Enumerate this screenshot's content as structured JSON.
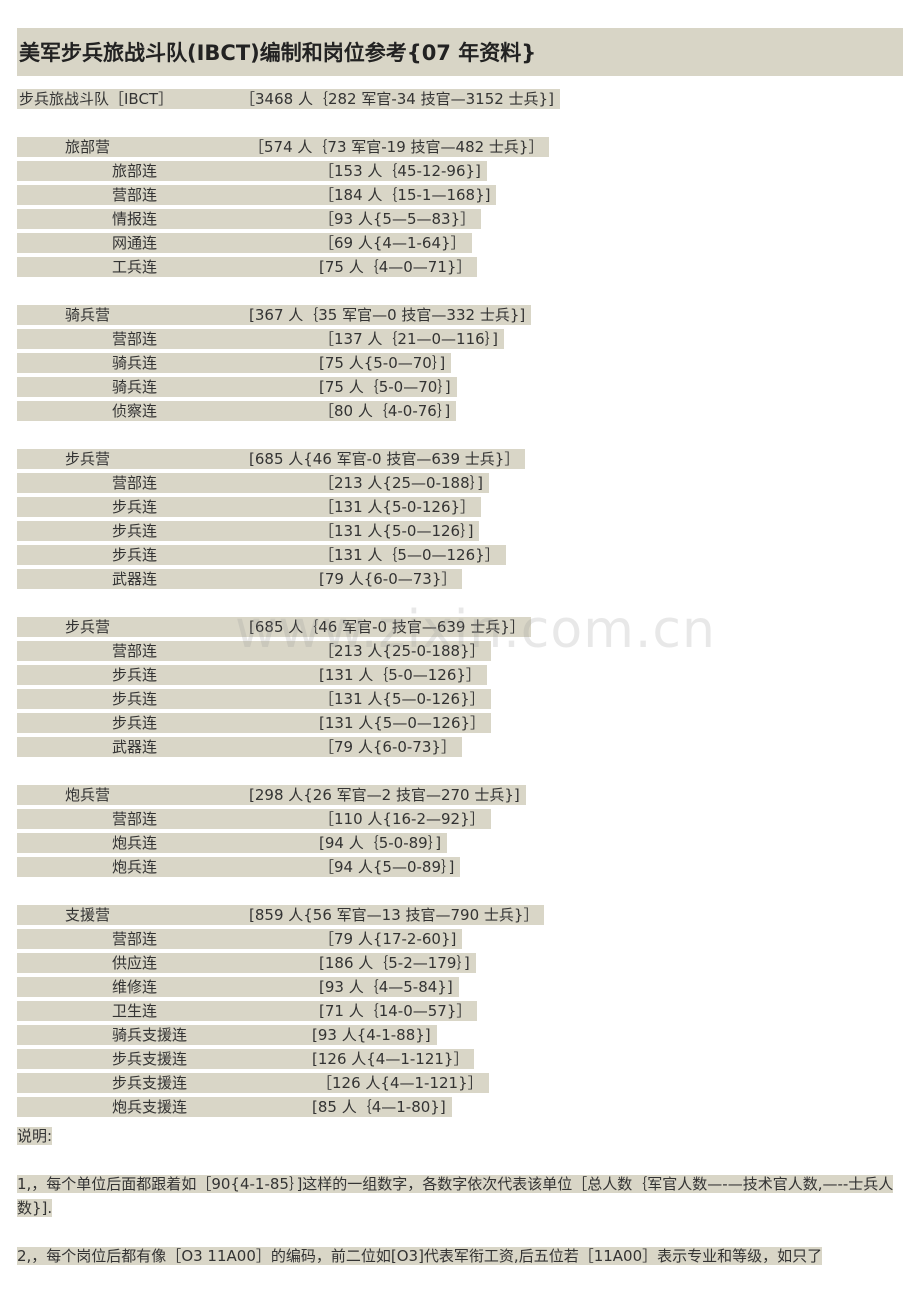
{
  "title": "美军步兵旅战斗队(IBCT)编制和岗位参考{07 年资料}",
  "rows": [
    {
      "level": 0,
      "name": "步兵旅战斗队［IBCT］",
      "value": "［3468 人｛282 军官-34 技官—3152 士兵}]"
    },
    null,
    {
      "level": 1,
      "name": "旅部营",
      "value": "［574 人｛73 军官-19 技官—482 士兵}］"
    },
    {
      "level": 2,
      "name": "旅部连",
      "value": "［153 人｛45-12-96}]"
    },
    {
      "level": 2,
      "name": "营部连",
      "value": "［184 人｛15-1—168}]"
    },
    {
      "level": 2,
      "name": "情报连",
      "value": "［93 人{5—5—83}］"
    },
    {
      "level": 2,
      "name": "网通连",
      "value": "［69 人{4—1-64}］"
    },
    {
      "level": 2,
      "name": "工兵连",
      "value": "[75 人｛4—0—71}］"
    },
    null,
    {
      "level": 1,
      "name": "骑兵营",
      "value": "[367 人｛35 军官—0 技官—332 士兵}]"
    },
    {
      "level": 2,
      "name": "营部连",
      "value": "［137 人｛21—0—116｝]"
    },
    {
      "level": 2,
      "name": "骑兵连",
      "value": "[75 人{5-0—70｝]"
    },
    {
      "level": 2,
      "name": "骑兵连",
      "value": "[75 人｛5-0—70｝]"
    },
    {
      "level": 2,
      "name": "侦察连",
      "value": "［80 人｛4-0-76｝]"
    },
    null,
    {
      "level": 1,
      "name": "步兵营",
      "value": "[685 人{46 军官-0 技官—639 士兵}］"
    },
    {
      "level": 2,
      "name": "营部连",
      "value": "［213 人{25—0-188｝]"
    },
    {
      "level": 2,
      "name": "步兵连",
      "value": "［131 人{5-0-126}］"
    },
    {
      "level": 2,
      "name": "步兵连",
      "value": "［131 人{5-0—126｝]"
    },
    {
      "level": 2,
      "name": "步兵连",
      "value": "［131 人｛5—0—126}］"
    },
    {
      "level": 2,
      "name": "武器连",
      "value": "[79 人{6-0—73}］"
    },
    null,
    {
      "level": 1,
      "name": "步兵营",
      "value": "[685 人｛46 军官-0 技官—639 士兵}］"
    },
    {
      "level": 2,
      "name": "营部连",
      "value": "［213 人{25-0-188}］"
    },
    {
      "level": 2,
      "name": "步兵连",
      "value": "[131 人｛5-0—126}］"
    },
    {
      "level": 2,
      "name": "步兵连",
      "value": "［131 人{5—0-126}］"
    },
    {
      "level": 2,
      "name": "步兵连",
      "value": "[131 人{5—0—126}］"
    },
    {
      "level": 2,
      "name": "武器连",
      "value": "［79 人{6-0-73}］"
    },
    null,
    {
      "level": 1,
      "name": "炮兵营",
      "value": "[298 人{26 军官—2 技官—270 士兵}]"
    },
    {
      "level": 2,
      "name": "营部连",
      "value": "［110 人{16-2—92}］"
    },
    {
      "level": 2,
      "name": "炮兵连",
      "value": "[94 人｛5-0-89｝]"
    },
    {
      "level": 2,
      "name": "炮兵连",
      "value": "［94 人{5—0-89｝]"
    },
    null,
    {
      "level": 1,
      "name": "支援营",
      "value": "[859 人{56 军官—13 技官—790 士兵}］"
    },
    {
      "level": 2,
      "name": "营部连",
      "value": "［79 人{17-2-60}]"
    },
    {
      "level": 2,
      "name": "供应连",
      "value": "[186 人｛5-2—179｝]"
    },
    {
      "level": 2,
      "name": "维修连",
      "value": "[93 人｛4—5-84}]"
    },
    {
      "level": 2,
      "name": "卫生连",
      "value": "[71 人｛14-0—57}］"
    },
    {
      "level": 2,
      "name": "骑兵支援连",
      "value": "[93 人{4-1-88}]",
      "shift": -7
    },
    {
      "level": 2,
      "name": "步兵支援连",
      "value": "[126 人{4—1-121}］",
      "shift": -7
    },
    {
      "level": 2,
      "name": "步兵支援连",
      "value": "［126 人{4—1-121}］",
      "shift": -2
    },
    {
      "level": 2,
      "name": "炮兵支援连",
      "value": "[85 人｛4—1-80}]",
      "shift": -7
    }
  ],
  "notes": {
    "heading": "说明:",
    "note1": "1,，每个单位后面都跟着如［90{4-1-85｝]这样的一组数字，各数字依次代表该单位［总人数｛军官人数—-—技术官人数,—--士兵人数}].",
    "note2": "2,，每个岗位后都有像［O3  11A00］的编码，前二位如[O3]代表军衔工资,后五位若［11A00］表示专业和等级，如只了"
  },
  "watermark": "www.zixin.com.cn",
  "colors": {
    "highlight": "#d9d6c7",
    "title_bg": "#d8d5c6"
  }
}
